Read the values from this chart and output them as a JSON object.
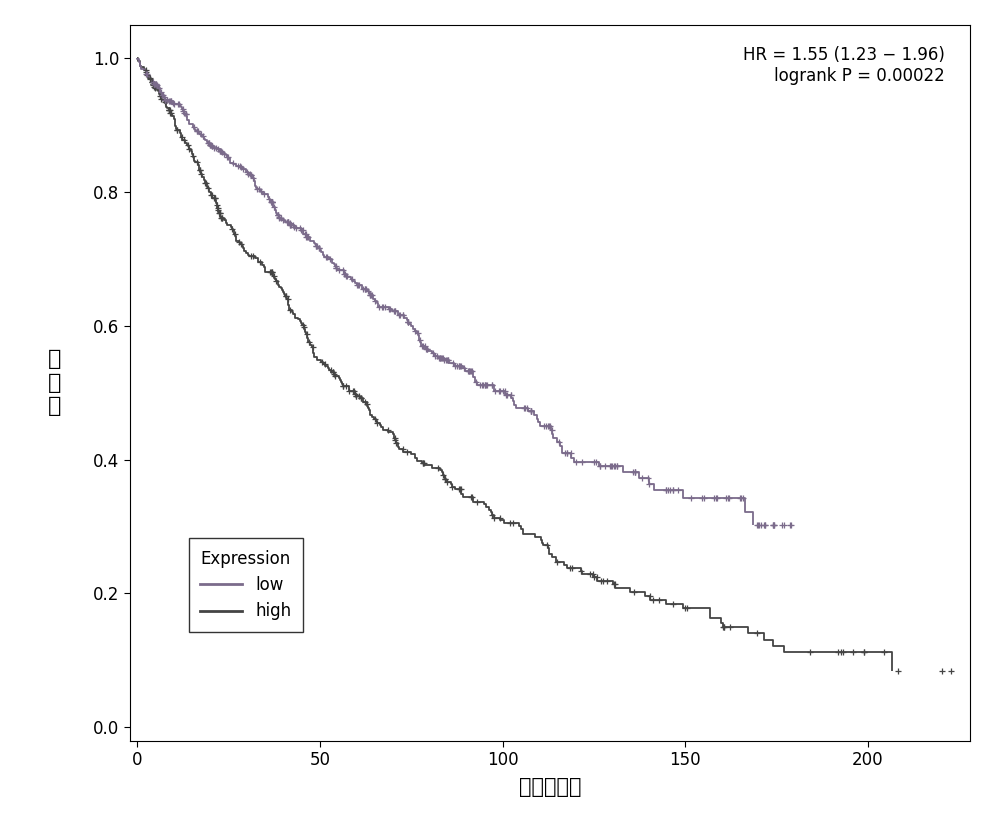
{
  "title": "",
  "xlabel": "时间（月）",
  "ylabel": "生\n存\n率",
  "xlim": [
    -2,
    228
  ],
  "ylim": [
    -0.02,
    1.05
  ],
  "xticks": [
    0,
    50,
    100,
    150,
    200
  ],
  "yticks": [
    0.0,
    0.2,
    0.4,
    0.6,
    0.8,
    1.0
  ],
  "hr_text": "HR = 1.55 (1.23 − 1.96)",
  "logrank_text": "logrank P = 0.00022",
  "legend_title": "Expression",
  "legend_low": "low",
  "legend_high": "high",
  "color_low": "#7B6B8B",
  "color_high": "#444444",
  "background_color": "#ffffff",
  "low_seed": 123,
  "high_seed": 456,
  "n_low": 500,
  "n_high": 450,
  "low_scale": 140,
  "high_scale": 85,
  "low_censor_max": 180,
  "high_censor_max": 230,
  "low_censor_min": 2,
  "high_censor_min": 2
}
